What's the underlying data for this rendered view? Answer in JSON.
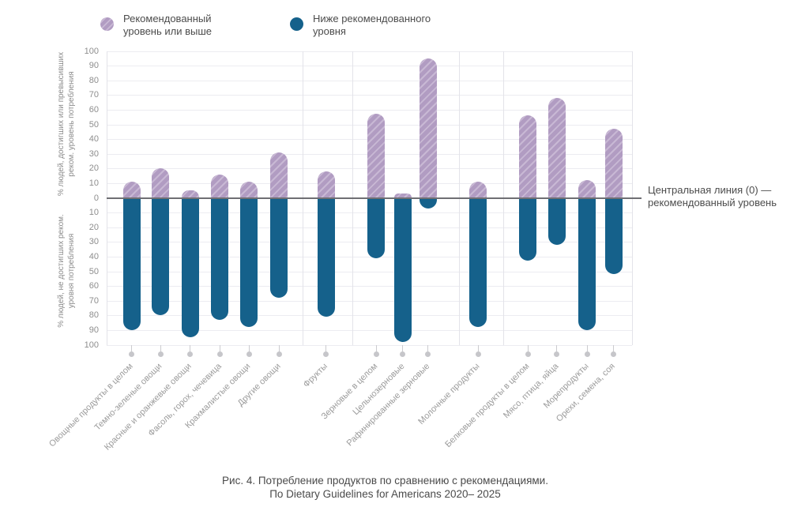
{
  "legend": {
    "above_label": "Рекомендованный\nуровень или выше",
    "below_label": "Ниже рекомендованного\nуровня"
  },
  "y_axis": {
    "top_title": "% людей, достигших или превысивших\nреком. уровень потребления",
    "bottom_title": "% людей, не достигших реком.\nуровня потребления"
  },
  "annotation": "Центральная линия (0) —\nрекомендованный уровень",
  "caption": {
    "line1": "Рис. 4. Потребление продуктов по сравнению с рекомендациями.",
    "line2": "По Dietary Guidelines for Americans 2020– 2025"
  },
  "colors": {
    "above_fill": "#b19cc2",
    "above_stripe": "#c8b8d4",
    "below_fill": "#15618b",
    "zero_line": "#6f6f73",
    "gridline": "#ececf1"
  },
  "chart_data": {
    "type": "bar",
    "subtype": "diverging",
    "unit": "%",
    "ylim": [
      -100,
      100
    ],
    "tick_step": 10,
    "grid": true,
    "legend_position": "top",
    "categories": [
      "Овощные продукты в целом",
      "Темно-зеленые овощи",
      "Красные и оранжевые овощи",
      "Фасоль, горох, чечевица",
      "Крахмалистые овощи",
      "Другие овощи",
      "Фрукты",
      "Зерновые в целом",
      "Цельнозерновые",
      "Рафинированные зерновые",
      "Молочные продукты",
      "Белковые продукты в целом",
      "Мясо, птица, яйца",
      "Морепродукты",
      "Орехи, семена, соя"
    ],
    "series": [
      {
        "name": "Рекомендованный уровень или выше",
        "direction": "up",
        "values": [
          11,
          20,
          5,
          16,
          11,
          31,
          18,
          57,
          3,
          95,
          11,
          56,
          68,
          12,
          47
        ]
      },
      {
        "name": "Ниже рекомендованного уровня",
        "direction": "down",
        "values": [
          90,
          80,
          95,
          83,
          88,
          68,
          81,
          41,
          98,
          7,
          88,
          43,
          32,
          90,
          52
        ]
      }
    ],
    "x_positions_pct": [
      4.77,
      10.27,
      15.89,
      21.55,
      27.07,
      32.83,
      41.8,
      51.28,
      56.39,
      61.16,
      70.68,
      80.2,
      85.71,
      91.47,
      96.5
    ],
    "group_separators_pct": [
      0,
      37.29,
      46.77,
      67.07,
      75.49,
      100
    ]
  }
}
